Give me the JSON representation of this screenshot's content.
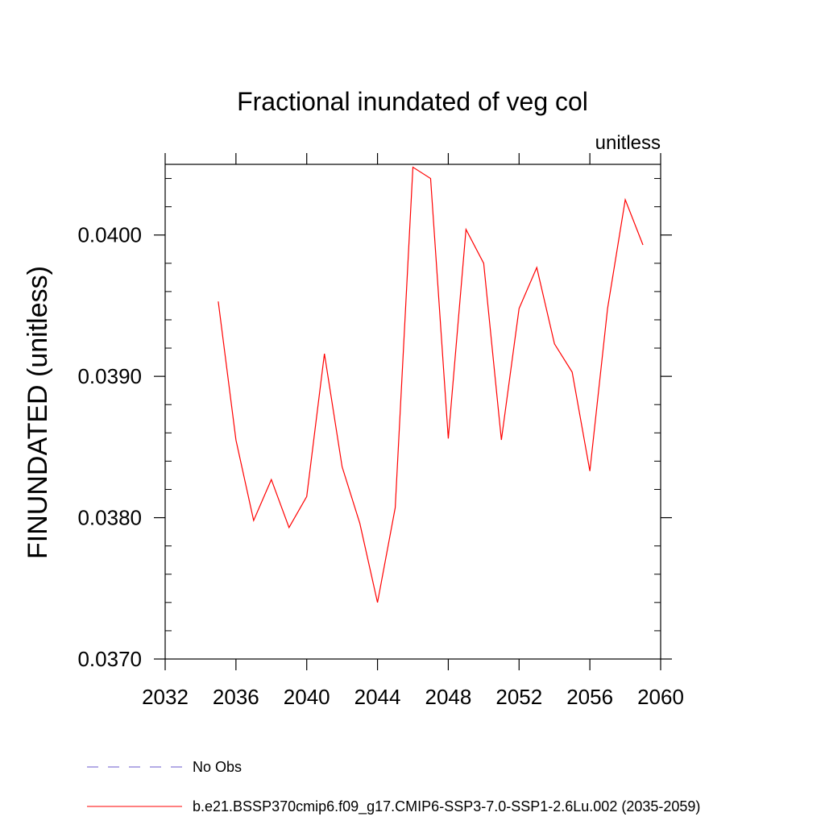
{
  "chart_data": {
    "type": "line",
    "title": "Fractional inundated of veg col",
    "units_label": "unitless",
    "ylabel": "FINUNDATED  (unitless)",
    "xlabel": "",
    "xlim": [
      2032,
      2060
    ],
    "ylim": [
      0.037,
      0.0405
    ],
    "x_ticks": [
      2032,
      2036,
      2040,
      2044,
      2048,
      2052,
      2056,
      2060
    ],
    "x_tick_labels": [
      "2032",
      "2036",
      "2040",
      "2044",
      "2048",
      "2052",
      "2056",
      "2060"
    ],
    "y_ticks": [
      0.037,
      0.038,
      0.039,
      0.04
    ],
    "y_tick_labels": [
      "0.0370",
      "0.0380",
      "0.0390",
      "0.0400"
    ],
    "grid": false,
    "legend_placement": "bottom",
    "series": [
      {
        "name": "b.e21.BSSP370cmip6.f09_g17.CMIP6-SSP3-7.0-SSP1-2.6Lu.002 (2035-2059)",
        "color": "#ff0000",
        "style": "solid",
        "x": [
          2035,
          2036,
          2037,
          2038,
          2039,
          2040,
          2041,
          2042,
          2043,
          2044,
          2045,
          2046,
          2047,
          2048,
          2049,
          2050,
          2051,
          2052,
          2053,
          2054,
          2055,
          2056,
          2057,
          2058,
          2059
        ],
        "y": [
          0.03953,
          0.03855,
          0.03798,
          0.03827,
          0.03793,
          0.03815,
          0.03916,
          0.03836,
          0.03796,
          0.0374,
          0.03807,
          0.04048,
          0.0404,
          0.03856,
          0.04004,
          0.0398,
          0.03855,
          0.03948,
          0.03977,
          0.03923,
          0.03903,
          0.03833,
          0.03948,
          0.04025,
          0.03993
        ]
      }
    ],
    "legend": [
      {
        "label": "No Obs",
        "color": "#6a5acd",
        "style": "dashed"
      },
      {
        "label": "b.e21.BSSP370cmip6.f09_g17.CMIP6-SSP3-7.0-SSP1-2.6Lu.002 (2035-2059)",
        "color": "#ff0000",
        "style": "solid"
      }
    ]
  }
}
